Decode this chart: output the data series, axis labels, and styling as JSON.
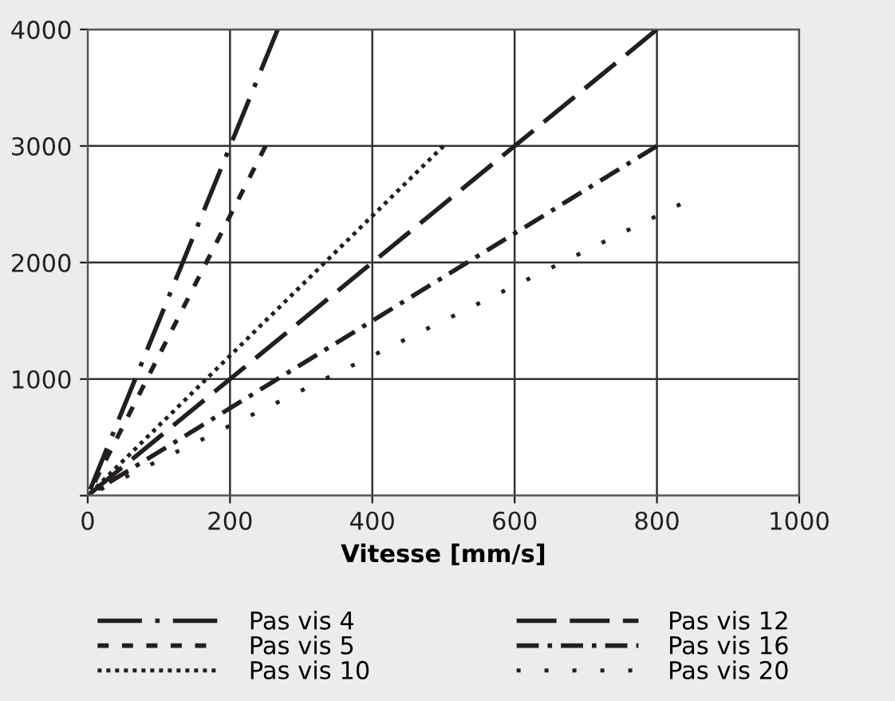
{
  "chart_data": {
    "type": "line",
    "xlabel": "Vitesse [mm/s]",
    "xlim": [
      0,
      1000
    ],
    "ylim": [
      0,
      4000
    ],
    "xticks": [
      0,
      200,
      400,
      600,
      800,
      1000
    ],
    "yticks": [
      {
        "value": 0,
        "label": null
      },
      1000,
      2000,
      3000,
      4000
    ],
    "grid": true,
    "legend": "bottom",
    "marker": "none",
    "series": [
      {
        "name": "Pas vis 4",
        "color": "#231f20",
        "x": [
          0,
          267
        ],
        "values": [
          0,
          4000
        ],
        "line_style": "dashdot"
      },
      {
        "name": "Pas vis 5",
        "color": "#231f20",
        "x": [
          0,
          250
        ],
        "values": [
          0,
          3000
        ],
        "line_style": "dashed"
      },
      {
        "name": "Pas vis 10",
        "color": "#231f20",
        "x": [
          0,
          500
        ],
        "values": [
          0,
          3000
        ],
        "line_style": "dotted"
      },
      {
        "name": "Pas vis 12",
        "color": "#231f20",
        "x": [
          0,
          800
        ],
        "values": [
          0,
          4000
        ],
        "line_style": "dashed"
      },
      {
        "name": "Pas vis 16",
        "color": "#231f20",
        "x": [
          0,
          800
        ],
        "values": [
          0,
          3000
        ],
        "line_style": "dashdot"
      },
      {
        "name": "Pas vis 20",
        "color": "#231f20",
        "x": [
          0,
          833
        ],
        "values": [
          0,
          2500
        ],
        "line_style": "dotted"
      }
    ]
  }
}
